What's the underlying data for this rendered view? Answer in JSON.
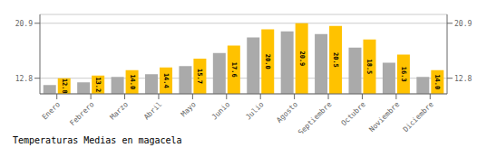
{
  "chart_data": {
    "type": "bar",
    "title": "Temperaturas Medias en magacela",
    "categories": [
      "Enero",
      "Febrero",
      "Marzo",
      "Abril",
      "Mayo",
      "Junio",
      "Julio",
      "Agosto",
      "Septiembre",
      "Octubre",
      "Noviembre",
      "Diciembre"
    ],
    "series": [
      {
        "color": "#AAAAAA",
        "values": [
          11.8,
          12.2,
          13.0,
          13.4,
          14.6,
          16.5,
          18.8,
          19.7,
          19.3,
          17.3,
          15.1,
          13.0
        ]
      },
      {
        "color": "#FFC200",
        "values": [
          12.8,
          13.2,
          14.0,
          14.4,
          15.7,
          17.6,
          20.0,
          20.9,
          20.5,
          18.5,
          16.3,
          14.0
        ],
        "data_labels": true,
        "value_labels": [
          "12.8",
          "13.2",
          "14.0",
          "14.4",
          "15.7",
          "17.6",
          "20.0",
          "20.9",
          "20.5",
          "18.5",
          "16.3",
          "14.0"
        ]
      }
    ],
    "ylim": [
      10.5,
      22.2
    ],
    "yticks": [
      12.8,
      20.9
    ],
    "grid": true
  }
}
